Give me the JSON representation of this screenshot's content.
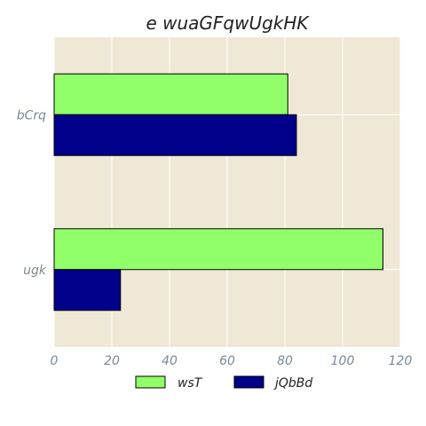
{
  "chart_data": {
    "type": "bar",
    "orientation": "horizontal",
    "title": "e wuaGFqwUgkHK",
    "xlabel": "",
    "ylabel": "",
    "categories": [
      "bCrq",
      "ugk"
    ],
    "series": [
      {
        "name": "wsT",
        "values": [
          81,
          114
        ],
        "color": "#91ff69"
      },
      {
        "name": "jQbBd",
        "values": [
          84,
          23
        ],
        "color": "#00008b"
      }
    ],
    "xlim": [
      0,
      120
    ],
    "xticks": [
      "0",
      "20",
      "40",
      "60",
      "80",
      "100",
      "120"
    ],
    "grid": true,
    "background": "#efe8d6",
    "legend_position": "bottom-center"
  }
}
